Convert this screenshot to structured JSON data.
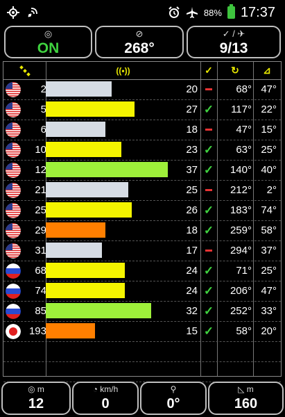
{
  "status_bar": {
    "battery": "88%",
    "time": "17:37",
    "icons": [
      "gps-icon",
      "location-signal-icon",
      "alarm-icon",
      "airplane-mode-icon",
      "battery-icon"
    ]
  },
  "top_panels": {
    "fix_status": {
      "icon": "satellite-target-icon",
      "value": "ON",
      "color": "#3fd23f"
    },
    "heading": {
      "icon": "compass-icon",
      "value": "268°"
    },
    "satellites_used": {
      "icon": "check-satellite-icon",
      "value": "9/13"
    }
  },
  "table_header": {
    "icons": [
      "satellite-icon",
      "signal-icon",
      "check-icon",
      "azimuth-icon",
      "elevation-icon"
    ],
    "colors": {
      "yellow": "#e8e800"
    }
  },
  "satellites": [
    {
      "flag": "us",
      "prn": "2",
      "snr": "20",
      "used": false,
      "azimuth": "68°",
      "elevation": "47°",
      "color": "#d6dce4"
    },
    {
      "flag": "us",
      "prn": "5",
      "snr": "27",
      "used": true,
      "azimuth": "117°",
      "elevation": "22°",
      "color": "#f4f400"
    },
    {
      "flag": "us",
      "prn": "6",
      "snr": "18",
      "used": false,
      "azimuth": "47°",
      "elevation": "15°",
      "color": "#d6dce4"
    },
    {
      "flag": "us",
      "prn": "10",
      "snr": "23",
      "used": true,
      "azimuth": "63°",
      "elevation": "25°",
      "color": "#f4f400"
    },
    {
      "flag": "us",
      "prn": "12",
      "snr": "37",
      "used": true,
      "azimuth": "140°",
      "elevation": "40°",
      "color": "#9ef03a"
    },
    {
      "flag": "us",
      "prn": "21",
      "snr": "25",
      "used": false,
      "azimuth": "212°",
      "elevation": "2°",
      "color": "#d6dce4"
    },
    {
      "flag": "us",
      "prn": "25",
      "snr": "26",
      "used": true,
      "azimuth": "183°",
      "elevation": "74°",
      "color": "#f4f400"
    },
    {
      "flag": "us",
      "prn": "29",
      "snr": "18",
      "used": true,
      "azimuth": "259°",
      "elevation": "58°",
      "color": "#ff7f00"
    },
    {
      "flag": "us",
      "prn": "31",
      "snr": "17",
      "used": false,
      "azimuth": "294°",
      "elevation": "37°",
      "color": "#d6dce4"
    },
    {
      "flag": "ru",
      "prn": "68",
      "snr": "24",
      "used": true,
      "azimuth": "71°",
      "elevation": "25°",
      "color": "#f4f400"
    },
    {
      "flag": "ru",
      "prn": "74",
      "snr": "24",
      "used": true,
      "azimuth": "206°",
      "elevation": "47°",
      "color": "#f4f400"
    },
    {
      "flag": "ru",
      "prn": "85",
      "snr": "32",
      "used": true,
      "azimuth": "252°",
      "elevation": "33°",
      "color": "#9ef03a"
    },
    {
      "flag": "jp",
      "prn": "193",
      "snr": "15",
      "used": true,
      "azimuth": "58°",
      "elevation": "20°",
      "color": "#ff7f00"
    }
  ],
  "bottom_panels": {
    "altitude": {
      "icon": "target-icon",
      "unit": "m",
      "value": "12"
    },
    "speed": {
      "icon": "speedometer-icon",
      "unit": "km/h",
      "value": "0"
    },
    "bearing": {
      "icon": "walking-icon",
      "unit": "",
      "value": "0°"
    },
    "accuracy": {
      "icon": "triangle-accuracy-icon",
      "unit": "m",
      "value": "160"
    }
  }
}
